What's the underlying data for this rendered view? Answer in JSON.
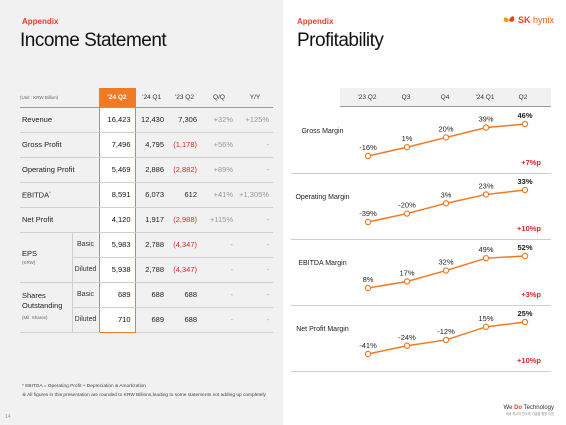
{
  "left": {
    "appendix": "Appendix",
    "title": "Income Statement",
    "unit": "(Unit : KRW Billion)",
    "columns": [
      "'24 Q2",
      "'24 Q1",
      "'23 Q2",
      "Q/Q",
      "Y/Y"
    ],
    "rows": [
      {
        "label": "Revenue",
        "values": [
          "16,423",
          "12,430",
          "7,306",
          "+32%",
          "+125%"
        ]
      },
      {
        "label": "Gross Profit",
        "values": [
          "7,496",
          "4,795",
          "(1,178)",
          "+56%",
          "-"
        ]
      },
      {
        "label": "Operating Profit",
        "values": [
          "5,469",
          "2,886",
          "(2,882)",
          "+89%",
          "-"
        ]
      },
      {
        "label": "EBITDA",
        "values": [
          "8,591",
          "6,073",
          "612",
          "+41%",
          "+1,305%"
        ]
      },
      {
        "label": "Net Profit",
        "values": [
          "4,120",
          "1,917",
          "(2,988)",
          "+115%",
          "-"
        ]
      }
    ],
    "eps": {
      "label": "EPS",
      "note": "(KRW)",
      "basic_label": "Basic",
      "diluted_label": "Diluted",
      "basic": [
        "5,983",
        "2,788",
        "(4,347)",
        "-",
        "-"
      ],
      "diluted": [
        "5,938",
        "2,788",
        "(4,347)",
        "-",
        "-"
      ]
    },
    "shares": {
      "label": "Shares",
      "label2": "Outstanding",
      "note": "(Mil. Shares)",
      "basic_label": "Basic",
      "diluted_label": "Diluted",
      "basic": [
        "689",
        "688",
        "688",
        "-",
        "-"
      ],
      "diluted": [
        "710",
        "689",
        "688",
        "-",
        "-"
      ]
    },
    "footnote1": "* EBITDA = Operating Profit + Depreciation & Amortization",
    "footnote2": "※ All figures in this presentation are rounded to KRW Billions,leading to some statements not adding up completely",
    "page_number": "14"
  },
  "right": {
    "appendix": "Appendix",
    "title": "Profitability",
    "brand_sk": "SK",
    "brand_hynix": "hynix",
    "columns": [
      "'23 Q2",
      "Q3",
      "Q4",
      "'24 Q1",
      "Q2"
    ],
    "rows": [
      {
        "label": "Gross Margin",
        "values": [
          -16,
          1,
          20,
          39,
          46
        ],
        "labels": [
          "-16%",
          "1%",
          "20%",
          "39%",
          "46%"
        ],
        "delta": "+7%p"
      },
      {
        "label": "Operating Margin",
        "values": [
          -39,
          -20,
          3,
          23,
          33
        ],
        "labels": [
          "-39%",
          "-20%",
          "3%",
          "23%",
          "33%"
        ],
        "delta": "+10%p"
      },
      {
        "label": "EBITDA Margin",
        "values": [
          8,
          17,
          32,
          49,
          52
        ],
        "labels": [
          "8%",
          "17%",
          "32%",
          "49%",
          "52%"
        ],
        "delta": "+3%p"
      },
      {
        "label": "Net Profit Margin",
        "values": [
          -41,
          -24,
          -12,
          15,
          25
        ],
        "labels": [
          "-41%",
          "-24%",
          "-12%",
          "15%",
          "25%"
        ],
        "delta": "+10%p"
      }
    ],
    "tagline_pre": "We ",
    "tagline_do": "Do",
    "tagline_post": " Technology",
    "tagline_sub": "세계 최고의 반도체 기술을 향한 도전"
  },
  "colors": {
    "accent": "#f07b24",
    "red": "#d8282a",
    "brand": "#e8402a"
  }
}
